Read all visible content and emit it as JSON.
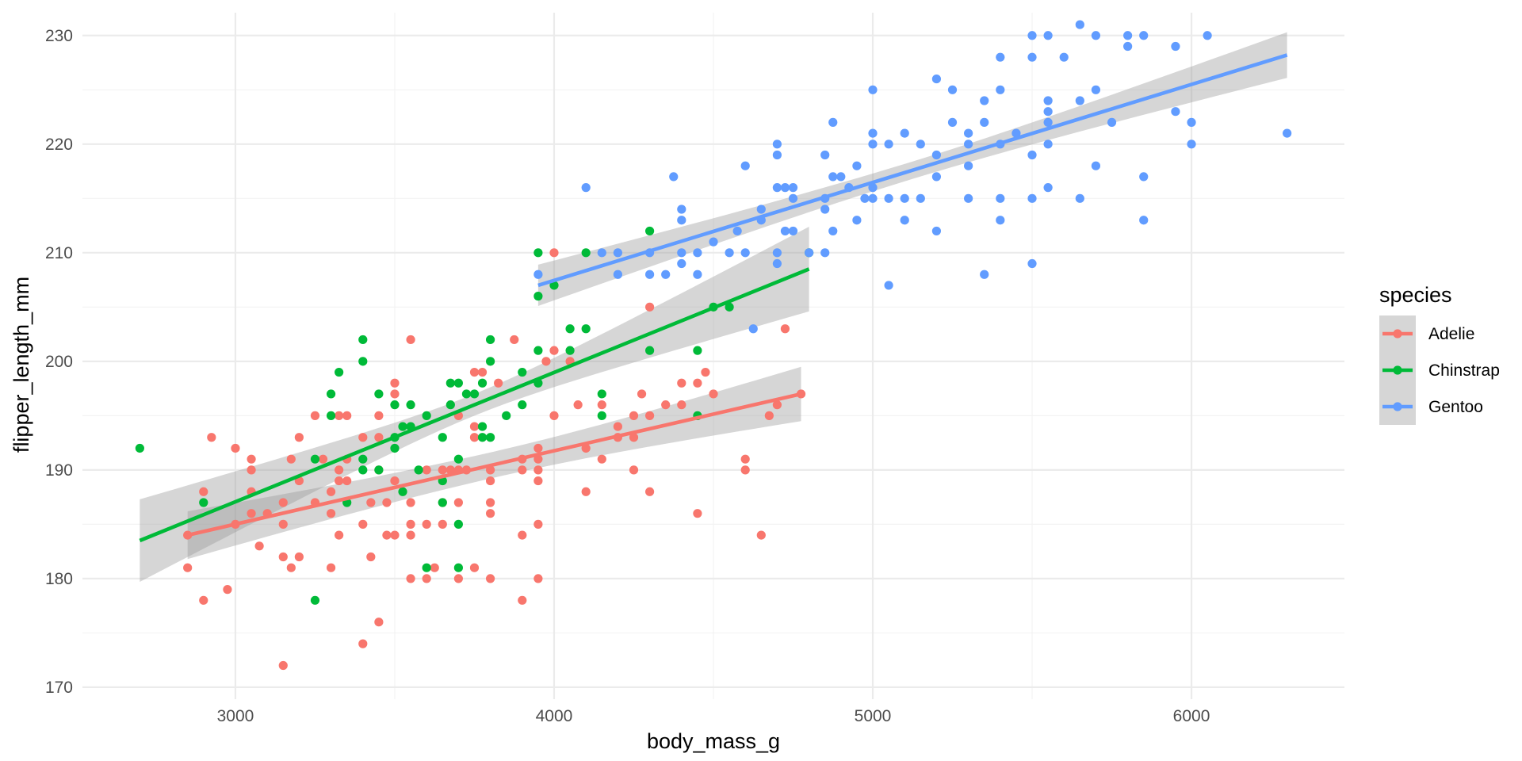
{
  "chart_data": {
    "type": "scatter",
    "title": "",
    "xlabel": "body_mass_g",
    "ylabel": "flipper_length_mm",
    "xlim": [
      2520,
      6480
    ],
    "ylim": [
      168.9,
      232.1
    ],
    "x_ticks": [
      3000,
      4000,
      5000,
      6000
    ],
    "y_ticks": [
      170,
      180,
      190,
      200,
      210,
      220,
      230
    ],
    "grid": true,
    "legend": {
      "title": "species",
      "position": "right"
    },
    "series": [
      {
        "name": "Adelie",
        "color": "#F8766D",
        "points": [
          [
            2850,
            181
          ],
          [
            2850,
            184
          ],
          [
            2900,
            178
          ],
          [
            2900,
            188
          ],
          [
            2925,
            193
          ],
          [
            2975,
            179
          ],
          [
            3000,
            192
          ],
          [
            3000,
            185
          ],
          [
            3050,
            191
          ],
          [
            3050,
            190
          ],
          [
            3050,
            188
          ],
          [
            3050,
            186
          ],
          [
            3075,
            183
          ],
          [
            3100,
            186
          ],
          [
            3150,
            172
          ],
          [
            3150,
            182
          ],
          [
            3150,
            185
          ],
          [
            3150,
            187
          ],
          [
            3175,
            191
          ],
          [
            3175,
            181
          ],
          [
            3200,
            182
          ],
          [
            3200,
            189
          ],
          [
            3200,
            193
          ],
          [
            3250,
            195
          ],
          [
            3250,
            187
          ],
          [
            3275,
            191
          ],
          [
            3300,
            181
          ],
          [
            3300,
            186
          ],
          [
            3300,
            188
          ],
          [
            3325,
            184
          ],
          [
            3325,
            189
          ],
          [
            3325,
            190
          ],
          [
            3325,
            195
          ],
          [
            3350,
            195
          ],
          [
            3350,
            189
          ],
          [
            3350,
            191
          ],
          [
            3400,
            174
          ],
          [
            3400,
            185
          ],
          [
            3400,
            193
          ],
          [
            3425,
            187
          ],
          [
            3425,
            182
          ],
          [
            3450,
            195
          ],
          [
            3450,
            176
          ],
          [
            3450,
            193
          ],
          [
            3450,
            190
          ],
          [
            3475,
            184
          ],
          [
            3475,
            187
          ],
          [
            3500,
            184
          ],
          [
            3500,
            189
          ],
          [
            3500,
            197
          ],
          [
            3500,
            198
          ],
          [
            3550,
            202
          ],
          [
            3550,
            180
          ],
          [
            3550,
            184
          ],
          [
            3550,
            185
          ],
          [
            3550,
            187
          ],
          [
            3600,
            180
          ],
          [
            3600,
            185
          ],
          [
            3600,
            190
          ],
          [
            3625,
            181
          ],
          [
            3650,
            185
          ],
          [
            3650,
            187
          ],
          [
            3650,
            190
          ],
          [
            3675,
            190
          ],
          [
            3700,
            180
          ],
          [
            3700,
            187
          ],
          [
            3700,
            190
          ],
          [
            3700,
            195
          ],
          [
            3725,
            190
          ],
          [
            3750,
            181
          ],
          [
            3750,
            193
          ],
          [
            3750,
            194
          ],
          [
            3750,
            199
          ],
          [
            3775,
            199
          ],
          [
            3800,
            180
          ],
          [
            3800,
            186
          ],
          [
            3800,
            187
          ],
          [
            3800,
            189
          ],
          [
            3800,
            190
          ],
          [
            3825,
            198
          ],
          [
            3875,
            202
          ],
          [
            3900,
            178
          ],
          [
            3900,
            184
          ],
          [
            3900,
            190
          ],
          [
            3900,
            191
          ],
          [
            3950,
            180
          ],
          [
            3950,
            185
          ],
          [
            3950,
            189
          ],
          [
            3950,
            190
          ],
          [
            3950,
            191
          ],
          [
            3950,
            192
          ],
          [
            3975,
            200
          ],
          [
            4000,
            195
          ],
          [
            4000,
            201
          ],
          [
            4000,
            210
          ],
          [
            4050,
            200
          ],
          [
            4075,
            196
          ],
          [
            4100,
            188
          ],
          [
            4100,
            192
          ],
          [
            4150,
            191
          ],
          [
            4150,
            196
          ],
          [
            4200,
            193
          ],
          [
            4200,
            194
          ],
          [
            4250,
            190
          ],
          [
            4250,
            193
          ],
          [
            4250,
            195
          ],
          [
            4275,
            197
          ],
          [
            4300,
            188
          ],
          [
            4300,
            195
          ],
          [
            4300,
            205
          ],
          [
            4350,
            196
          ],
          [
            4400,
            196
          ],
          [
            4400,
            198
          ],
          [
            4450,
            186
          ],
          [
            4450,
            198
          ],
          [
            4475,
            199
          ],
          [
            4500,
            197
          ],
          [
            4650,
            184
          ],
          [
            4675,
            195
          ],
          [
            4700,
            196
          ],
          [
            4725,
            203
          ],
          [
            4775,
            197
          ],
          [
            4600,
            190
          ],
          [
            4600,
            191
          ]
        ],
        "fit": [
          [
            2850,
            184.0
          ],
          [
            4775,
            197.0
          ]
        ],
        "ci_halfwidth": [
          2.2,
          1.2,
          2.5
        ]
      },
      {
        "name": "Chinstrap",
        "color": "#00BA38",
        "points": [
          [
            2700,
            192
          ],
          [
            2900,
            187
          ],
          [
            3250,
            178
          ],
          [
            3250,
            191
          ],
          [
            3300,
            195
          ],
          [
            3300,
            197
          ],
          [
            3325,
            199
          ],
          [
            3350,
            187
          ],
          [
            3400,
            202
          ],
          [
            3400,
            200
          ],
          [
            3400,
            191
          ],
          [
            3400,
            190
          ],
          [
            3450,
            197
          ],
          [
            3450,
            190
          ],
          [
            3500,
            196
          ],
          [
            3500,
            192
          ],
          [
            3500,
            193
          ],
          [
            3525,
            194
          ],
          [
            3525,
            188
          ],
          [
            3550,
            196
          ],
          [
            3550,
            194
          ],
          [
            3575,
            190
          ],
          [
            3600,
            181
          ],
          [
            3600,
            195
          ],
          [
            3650,
            187
          ],
          [
            3650,
            189
          ],
          [
            3650,
            193
          ],
          [
            3675,
            196
          ],
          [
            3675,
            198
          ],
          [
            3700,
            198
          ],
          [
            3700,
            191
          ],
          [
            3700,
            185
          ],
          [
            3700,
            181
          ],
          [
            3725,
            197
          ],
          [
            3750,
            197
          ],
          [
            3775,
            193
          ],
          [
            3775,
            194
          ],
          [
            3775,
            198
          ],
          [
            3800,
            202
          ],
          [
            3800,
            200
          ],
          [
            3800,
            193
          ],
          [
            3850,
            195
          ],
          [
            3900,
            199
          ],
          [
            3900,
            196
          ],
          [
            3950,
            210
          ],
          [
            3950,
            206
          ],
          [
            3950,
            201
          ],
          [
            3950,
            198
          ],
          [
            4000,
            207
          ],
          [
            4050,
            203
          ],
          [
            4050,
            201
          ],
          [
            4100,
            203
          ],
          [
            4100,
            210
          ],
          [
            4150,
            195
          ],
          [
            4150,
            197
          ],
          [
            4300,
            212
          ],
          [
            4300,
            201
          ],
          [
            4450,
            195
          ],
          [
            4450,
            201
          ],
          [
            4500,
            205
          ],
          [
            4550,
            205
          ],
          [
            4800,
            210
          ]
        ],
        "fit": [
          [
            2700,
            183.5
          ],
          [
            4800,
            208.5
          ]
        ],
        "ci_halfwidth": [
          3.8,
          1.0,
          3.9
        ]
      },
      {
        "name": "Gentoo",
        "color": "#619CFF",
        "points": [
          [
            3950,
            208
          ],
          [
            4100,
            216
          ],
          [
            4150,
            210
          ],
          [
            4200,
            208
          ],
          [
            4200,
            210
          ],
          [
            4300,
            208
          ],
          [
            4300,
            210
          ],
          [
            4350,
            208
          ],
          [
            4375,
            217
          ],
          [
            4400,
            209
          ],
          [
            4400,
            210
          ],
          [
            4400,
            213
          ],
          [
            4400,
            214
          ],
          [
            4450,
            208
          ],
          [
            4450,
            210
          ],
          [
            4500,
            211
          ],
          [
            4550,
            210
          ],
          [
            4575,
            212
          ],
          [
            4600,
            210
          ],
          [
            4600,
            218
          ],
          [
            4625,
            203
          ],
          [
            4650,
            213
          ],
          [
            4650,
            214
          ],
          [
            4700,
            209
          ],
          [
            4700,
            210
          ],
          [
            4700,
            216
          ],
          [
            4700,
            219
          ],
          [
            4700,
            220
          ],
          [
            4725,
            212
          ],
          [
            4725,
            216
          ],
          [
            4750,
            212
          ],
          [
            4750,
            215
          ],
          [
            4750,
            216
          ],
          [
            4800,
            210
          ],
          [
            4850,
            210
          ],
          [
            4850,
            214
          ],
          [
            4850,
            215
          ],
          [
            4850,
            219
          ],
          [
            4875,
            222
          ],
          [
            4875,
            212
          ],
          [
            4875,
            217
          ],
          [
            4900,
            217
          ],
          [
            4925,
            216
          ],
          [
            4950,
            213
          ],
          [
            4950,
            218
          ],
          [
            4975,
            215
          ],
          [
            5000,
            215
          ],
          [
            5000,
            216
          ],
          [
            5000,
            220
          ],
          [
            5000,
            221
          ],
          [
            5000,
            225
          ],
          [
            5050,
            207
          ],
          [
            5050,
            215
          ],
          [
            5050,
            220
          ],
          [
            5100,
            213
          ],
          [
            5100,
            215
          ],
          [
            5100,
            221
          ],
          [
            5150,
            215
          ],
          [
            5150,
            220
          ],
          [
            5200,
            212
          ],
          [
            5200,
            217
          ],
          [
            5200,
            219
          ],
          [
            5200,
            226
          ],
          [
            5250,
            222
          ],
          [
            5250,
            225
          ],
          [
            5300,
            215
          ],
          [
            5300,
            218
          ],
          [
            5300,
            220
          ],
          [
            5300,
            221
          ],
          [
            5350,
            208
          ],
          [
            5350,
            222
          ],
          [
            5350,
            224
          ],
          [
            5400,
            213
          ],
          [
            5400,
            215
          ],
          [
            5400,
            220
          ],
          [
            5400,
            225
          ],
          [
            5400,
            228
          ],
          [
            5450,
            221
          ],
          [
            5500,
            209
          ],
          [
            5500,
            215
          ],
          [
            5500,
            219
          ],
          [
            5500,
            228
          ],
          [
            5500,
            230
          ],
          [
            5550,
            216
          ],
          [
            5550,
            220
          ],
          [
            5550,
            222
          ],
          [
            5550,
            223
          ],
          [
            5550,
            224
          ],
          [
            5550,
            230
          ],
          [
            5600,
            228
          ],
          [
            5650,
            215
          ],
          [
            5650,
            224
          ],
          [
            5650,
            231
          ],
          [
            5700,
            218
          ],
          [
            5700,
            225
          ],
          [
            5700,
            230
          ],
          [
            5750,
            222
          ],
          [
            5800,
            229
          ],
          [
            5800,
            230
          ],
          [
            5850,
            213
          ],
          [
            5850,
            217
          ],
          [
            5850,
            230
          ],
          [
            5950,
            223
          ],
          [
            5950,
            229
          ],
          [
            6000,
            220
          ],
          [
            6000,
            222
          ],
          [
            6050,
            230
          ],
          [
            6300,
            221
          ]
        ],
        "fit": [
          [
            3950,
            207.0
          ],
          [
            6300,
            228.2
          ]
        ],
        "ci_halfwidth": [
          1.9,
          0.8,
          2.1
        ]
      }
    ]
  }
}
